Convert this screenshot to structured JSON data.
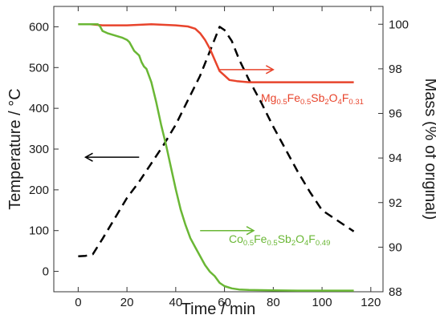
{
  "chart_data": {
    "type": "line",
    "xlabel": "Time / min",
    "ylabel_left": "Temperature / °C",
    "ylabel_right": "Mass (% of original)",
    "xlim": [
      -10,
      125
    ],
    "ylim_left": [
      -50,
      650
    ],
    "ylim_right": [
      88,
      100.8
    ],
    "x_ticks": [
      0,
      20,
      40,
      60,
      80,
      100,
      120
    ],
    "y_left_ticks": [
      0,
      100,
      200,
      300,
      400,
      500,
      600
    ],
    "y_right_ticks": [
      88,
      90,
      92,
      94,
      96,
      98,
      100
    ],
    "grid": false,
    "series": [
      {
        "axis": "left",
        "color": "#000000",
        "dash": true,
        "x": [
          0,
          3,
          6,
          10,
          15,
          20,
          25,
          30,
          35,
          40,
          45,
          50,
          54,
          57,
          58,
          60,
          63,
          66,
          70,
          75,
          80,
          85,
          90,
          95,
          100,
          105,
          110,
          113
        ],
        "y": [
          37,
          38,
          42,
          80,
          130,
          180,
          220,
          265,
          310,
          360,
          420,
          480,
          540,
          585,
          600,
          592,
          565,
          520,
          470,
          415,
          355,
          300,
          245,
          195,
          150,
          130,
          110,
          98
        ]
      },
      {
        "axis": "right",
        "color": "#e8442c",
        "x": [
          0,
          5,
          10,
          20,
          30,
          40,
          45,
          48,
          50,
          52,
          54,
          56,
          58,
          60,
          62,
          65,
          70,
          80,
          90,
          100,
          113
        ],
        "y": [
          100,
          100,
          99.95,
          99.95,
          100,
          99.95,
          99.9,
          99.8,
          99.6,
          99.3,
          98.9,
          98.4,
          97.9,
          97.7,
          97.5,
          97.45,
          97.4,
          97.4,
          97.4,
          97.4,
          97.4
        ]
      },
      {
        "axis": "right",
        "color": "#6ab735",
        "x": [
          0,
          5,
          8,
          9,
          10,
          12,
          15,
          18,
          20,
          21,
          22,
          23,
          25,
          26,
          27,
          28,
          30,
          32,
          34,
          36,
          38,
          40,
          42,
          44,
          46,
          48,
          50,
          52,
          54,
          56,
          58,
          60,
          63,
          66,
          70,
          80,
          90,
          100,
          113
        ],
        "y": [
          100,
          100,
          100,
          99.9,
          99.7,
          99.6,
          99.5,
          99.4,
          99.3,
          99.2,
          99.0,
          98.8,
          98.6,
          98.3,
          98.1,
          98.0,
          97.4,
          96.5,
          95.5,
          94.6,
          93.6,
          92.6,
          91.7,
          91.0,
          90.4,
          90.0,
          89.6,
          89.2,
          88.9,
          88.7,
          88.4,
          88.25,
          88.15,
          88.1,
          88.08,
          88.06,
          88.05,
          88.05,
          88.05
        ]
      }
    ],
    "annotations": [
      {
        "color": "#000000",
        "from": [
          25,
          280
        ],
        "to": [
          3,
          280
        ],
        "axis": "left"
      },
      {
        "color": "#e8442c",
        "from": [
          58,
          495
        ],
        "to": [
          80,
          495
        ],
        "axis": "left"
      },
      {
        "color": "#6ab735",
        "from": [
          50,
          100
        ],
        "to": [
          72,
          100
        ],
        "axis": "left"
      }
    ],
    "labels": [
      {
        "id": "label-mg",
        "color": "#e8442c",
        "parts": [
          {
            "t": "Mg",
            "s": false
          },
          {
            "t": "0.5",
            "s": true
          },
          {
            "t": "Fe",
            "s": false
          },
          {
            "t": "0.5",
            "s": true
          },
          {
            "t": "Sb",
            "s": false
          },
          {
            "t": "2",
            "s": true
          },
          {
            "t": "O",
            "s": false
          },
          {
            "t": "4",
            "s": true
          },
          {
            "t": "F",
            "s": false
          },
          {
            "t": "0.31",
            "s": true
          }
        ]
      },
      {
        "id": "label-co",
        "color": "#6ab735",
        "parts": [
          {
            "t": "Co",
            "s": false
          },
          {
            "t": "0.5",
            "s": true
          },
          {
            "t": "Fe",
            "s": false
          },
          {
            "t": "0.5",
            "s": true
          },
          {
            "t": "Sb",
            "s": false
          },
          {
            "t": "2",
            "s": true
          },
          {
            "t": "O",
            "s": false
          },
          {
            "t": "4",
            "s": true
          },
          {
            "t": "F",
            "s": false
          },
          {
            "t": "0.49",
            "s": true
          }
        ]
      }
    ]
  }
}
